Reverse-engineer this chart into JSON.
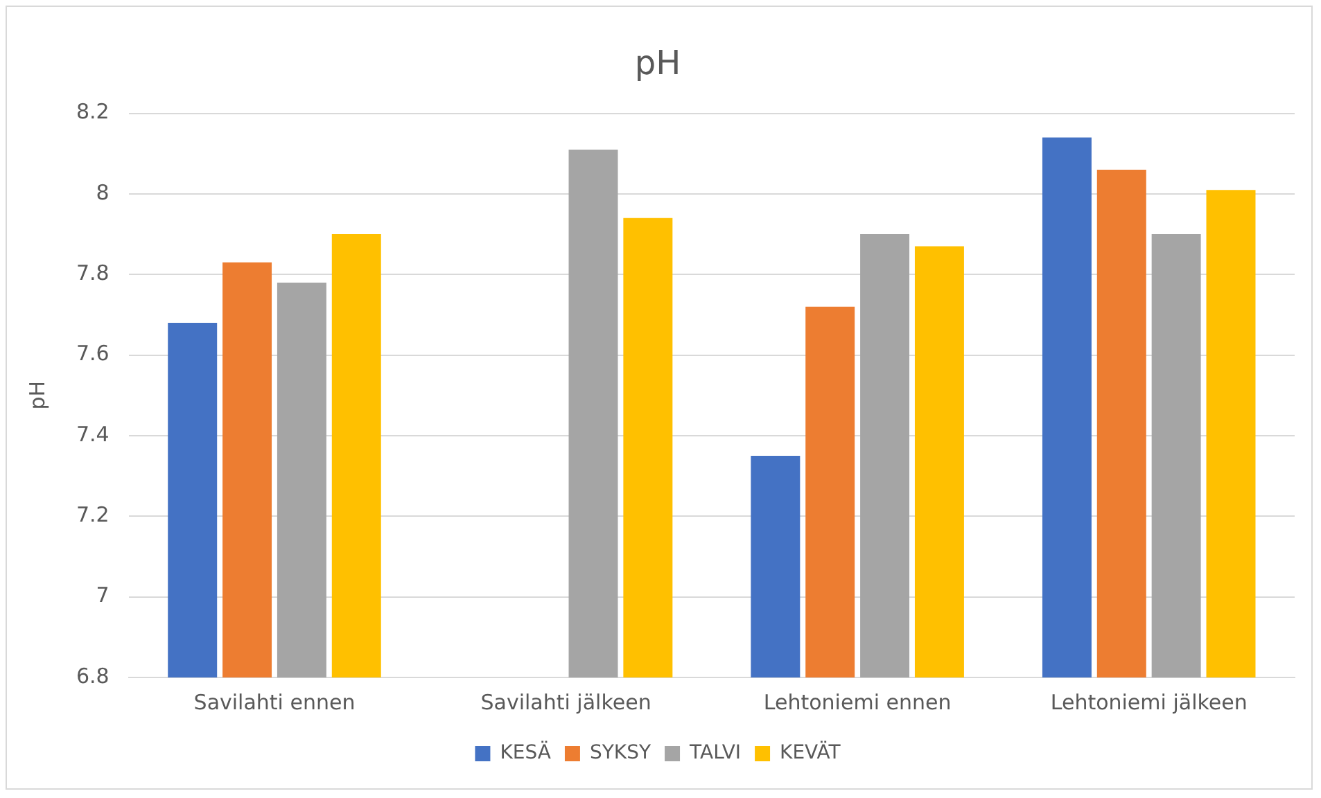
{
  "chart_data": {
    "type": "bar",
    "title": "pH",
    "ylabel": "pH",
    "categories": [
      "Savilahti ennen",
      "Savilahti jälkeen",
      "Lehtoniemi ennen",
      "Lehtoniemi jälkeen"
    ],
    "series": [
      {
        "name": "KESÄ",
        "color": "#4472c4",
        "values": [
          7.68,
          null,
          7.35,
          8.14
        ]
      },
      {
        "name": "SYKSY",
        "color": "#ed7d31",
        "values": [
          7.83,
          null,
          7.72,
          8.06
        ]
      },
      {
        "name": "TALVI",
        "color": "#a5a5a5",
        "values": [
          7.78,
          8.11,
          7.9,
          7.9
        ]
      },
      {
        "name": "KEVÄT",
        "color": "#ffc000",
        "values": [
          7.9,
          7.94,
          7.87,
          8.01
        ]
      }
    ],
    "ylim": [
      6.8,
      8.2
    ],
    "yticks": [
      6.8,
      7,
      7.2,
      7.4,
      7.6,
      7.8,
      8,
      8.2
    ],
    "grid": "y",
    "legend": "bottom"
  }
}
